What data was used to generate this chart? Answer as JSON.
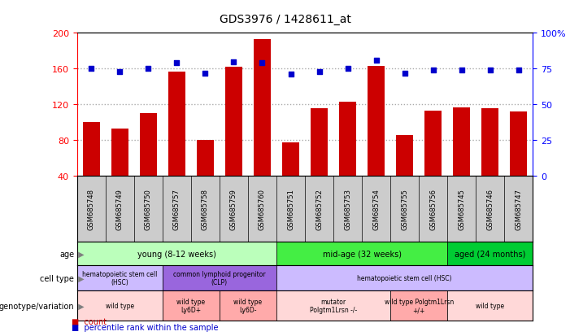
{
  "title": "GDS3976 / 1428611_at",
  "samples": [
    "GSM685748",
    "GSM685749",
    "GSM685750",
    "GSM685757",
    "GSM685758",
    "GSM685759",
    "GSM685760",
    "GSM685751",
    "GSM685752",
    "GSM685753",
    "GSM685754",
    "GSM685755",
    "GSM685756",
    "GSM685745",
    "GSM685746",
    "GSM685747"
  ],
  "counts": [
    100,
    93,
    110,
    157,
    80,
    162,
    193,
    78,
    116,
    123,
    163,
    86,
    113,
    117,
    116,
    112
  ],
  "percentile_ranks": [
    75,
    73,
    75,
    79,
    72,
    80,
    79,
    71,
    73,
    75,
    81,
    72,
    74,
    74,
    74,
    74
  ],
  "ylim_left": [
    40,
    200
  ],
  "ylim_right": [
    0,
    100
  ],
  "yticks_left": [
    40,
    80,
    120,
    160,
    200
  ],
  "yticks_right": [
    0,
    25,
    50,
    75,
    100
  ],
  "ytick_right_labels": [
    "0",
    "25",
    "50",
    "75",
    "100%"
  ],
  "grid_vals": [
    80,
    120,
    160
  ],
  "age_groups": [
    {
      "label": "young (8-12 weeks)",
      "start": 0,
      "end": 7,
      "color": "#bbffbb"
    },
    {
      "label": "mid-age (32 weeks)",
      "start": 7,
      "end": 13,
      "color": "#44ee44"
    },
    {
      "label": "aged (24 months)",
      "start": 13,
      "end": 16,
      "color": "#00cc33"
    }
  ],
  "cell_type_groups": [
    {
      "label": "hematopoietic stem cell\n(HSC)",
      "start": 0,
      "end": 3,
      "color": "#ccbbff"
    },
    {
      "label": "common lymphoid progenitor\n(CLP)",
      "start": 3,
      "end": 7,
      "color": "#9966dd"
    },
    {
      "label": "hematopoietic stem cell (HSC)",
      "start": 7,
      "end": 16,
      "color": "#ccbbff"
    }
  ],
  "genotype_groups": [
    {
      "label": "wild type",
      "start": 0,
      "end": 3,
      "color": "#ffd8d8"
    },
    {
      "label": "wild type\nLy6D+",
      "start": 3,
      "end": 5,
      "color": "#ffaaaa"
    },
    {
      "label": "wild type\nLy6D-",
      "start": 5,
      "end": 7,
      "color": "#ffaaaa"
    },
    {
      "label": "mutator\nPolgtm1Lrsn -/-",
      "start": 7,
      "end": 11,
      "color": "#ffd8d8"
    },
    {
      "label": "wild type Polgtm1Lrsn\n+/+",
      "start": 11,
      "end": 13,
      "color": "#ffaaaa"
    },
    {
      "label": "wild type",
      "start": 13,
      "end": 16,
      "color": "#ffd8d8"
    }
  ],
  "bar_color": "#cc0000",
  "scatter_color": "#0000cc",
  "grid_color": "#aaaaaa",
  "sample_bg_color": "#cccccc",
  "legend": [
    {
      "label": "count",
      "color": "#cc0000"
    },
    {
      "label": "percentile rank within the sample",
      "color": "#0000cc"
    }
  ]
}
